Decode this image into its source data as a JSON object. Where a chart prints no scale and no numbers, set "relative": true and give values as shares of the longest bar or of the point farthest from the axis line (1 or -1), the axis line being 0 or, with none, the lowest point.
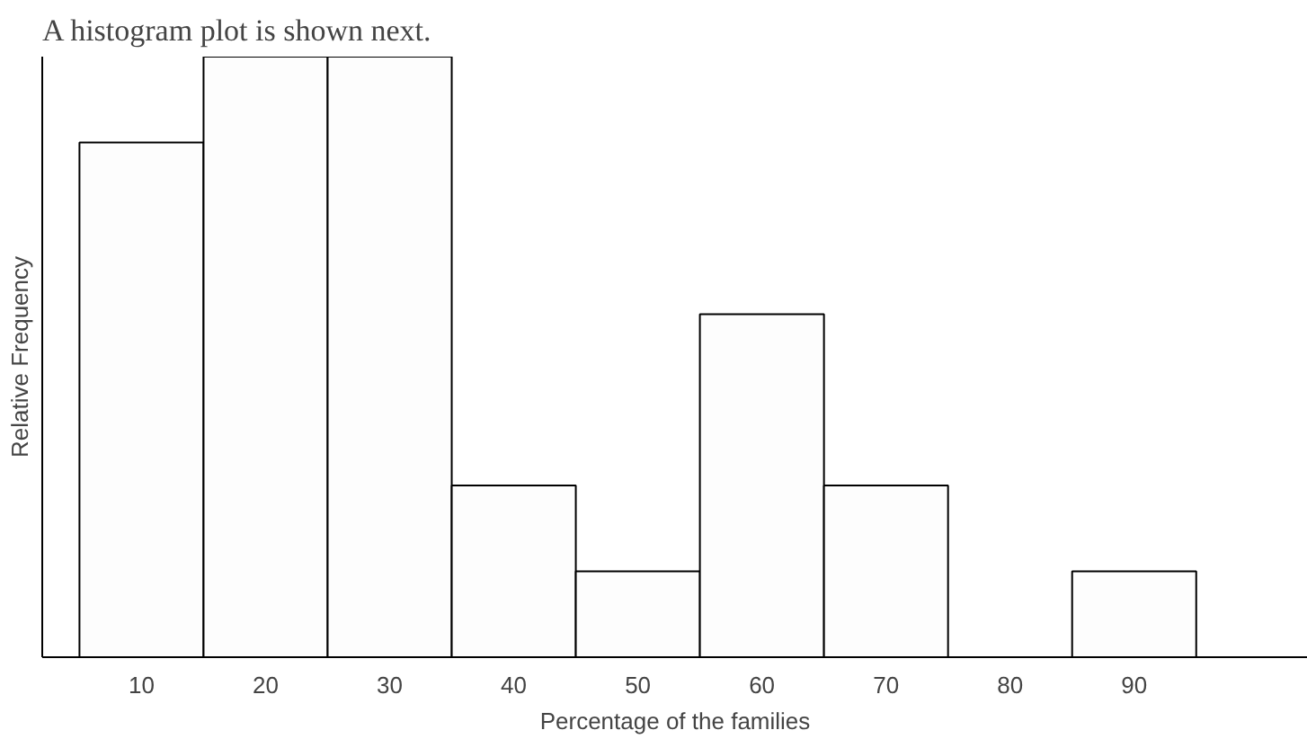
{
  "chart_data": {
    "type": "bar",
    "title": "A histogram plot is shown next.",
    "xlabel": "Percentage of the families",
    "ylabel": "Relative Frequency",
    "categories": [
      "10",
      "20",
      "30",
      "40",
      "50",
      "60",
      "70",
      "80",
      "90"
    ],
    "values": [
      0.857,
      1,
      1,
      0.286,
      0.143,
      0.571,
      0.286,
      0,
      0.143
    ],
    "relative": true,
    "color": "#fdfdfd",
    "grid": false
  }
}
